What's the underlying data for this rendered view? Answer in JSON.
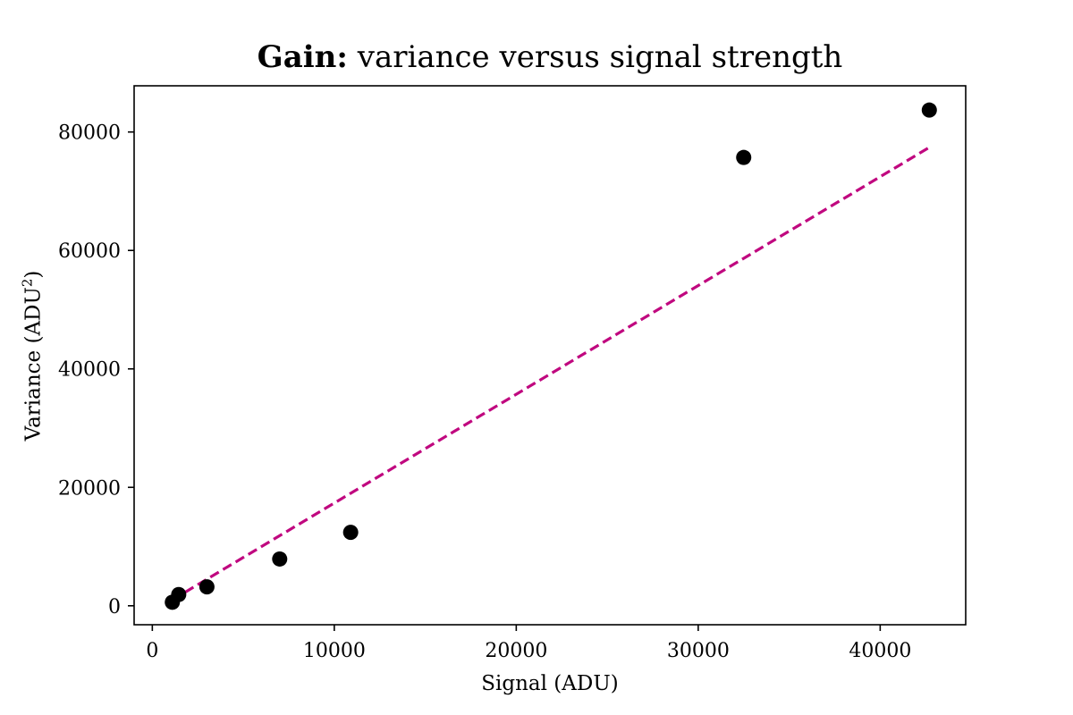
{
  "chart_data": {
    "type": "scatter",
    "title_bold": "Gain:",
    "title_rest": " variance versus signal strength",
    "xlabel": "Signal (ADU)",
    "ylabel_main": "Variance (ADU",
    "ylabel_sup": "2",
    "ylabel_end": ")",
    "xlim": [
      -1000,
      44700
    ],
    "ylim": [
      -3200,
      87800
    ],
    "xticks": [
      0,
      10000,
      20000,
      30000,
      40000
    ],
    "yticks": [
      0,
      20000,
      40000,
      60000,
      80000
    ],
    "points": [
      {
        "x": 1100,
        "y": 600
      },
      {
        "x": 1450,
        "y": 1900
      },
      {
        "x": 3000,
        "y": 3200
      },
      {
        "x": 7000,
        "y": 7900
      },
      {
        "x": 10900,
        "y": 12400
      },
      {
        "x": 32500,
        "y": 75700
      },
      {
        "x": 42700,
        "y": 83700
      }
    ],
    "fit_line": {
      "x": [
        1100,
        42700
      ],
      "y": [
        1000,
        77400
      ]
    },
    "colors": {
      "points": "#000000",
      "fit": "#c0087f",
      "axes": "#000000"
    },
    "grid": false,
    "legend": "none"
  }
}
